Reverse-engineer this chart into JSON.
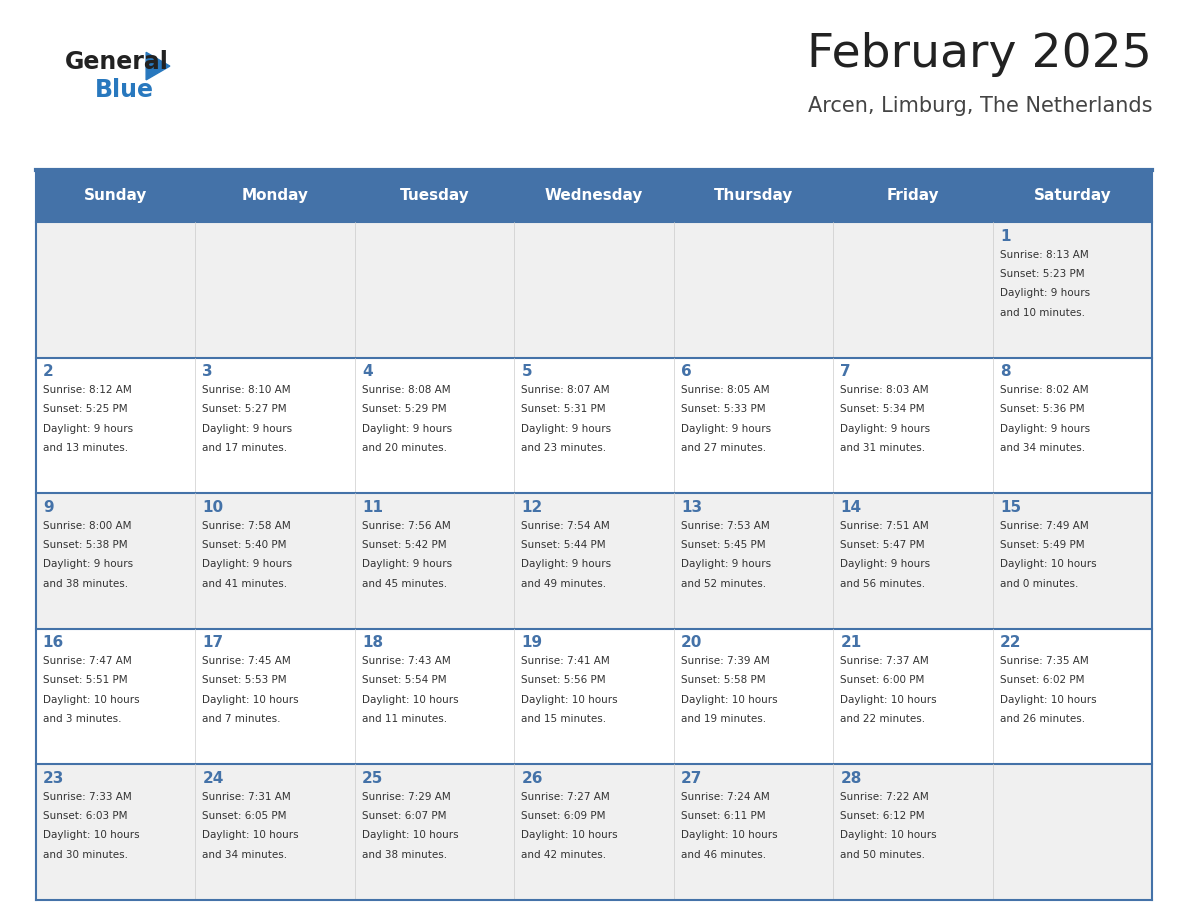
{
  "title": "February 2025",
  "subtitle": "Arcen, Limburg, The Netherlands",
  "days_of_week": [
    "Sunday",
    "Monday",
    "Tuesday",
    "Wednesday",
    "Thursday",
    "Friday",
    "Saturday"
  ],
  "header_bg": "#4472a8",
  "header_text": "#ffffff",
  "row_bg_even": "#f0f0f0",
  "row_bg_odd": "#ffffff",
  "separator_color": "#4472a8",
  "day_num_color": "#4472a8",
  "cell_text_color": "#333333",
  "title_color": "#222222",
  "subtitle_color": "#444444",
  "logo_general_color": "#222222",
  "logo_blue_color": "#2878be",
  "calendar_data": [
    {
      "day": 1,
      "col": 6,
      "row": 0,
      "sunrise": "8:13 AM",
      "sunset": "5:23 PM",
      "daylight": "9 hours and 10 minutes."
    },
    {
      "day": 2,
      "col": 0,
      "row": 1,
      "sunrise": "8:12 AM",
      "sunset": "5:25 PM",
      "daylight": "9 hours and 13 minutes."
    },
    {
      "day": 3,
      "col": 1,
      "row": 1,
      "sunrise": "8:10 AM",
      "sunset": "5:27 PM",
      "daylight": "9 hours and 17 minutes."
    },
    {
      "day": 4,
      "col": 2,
      "row": 1,
      "sunrise": "8:08 AM",
      "sunset": "5:29 PM",
      "daylight": "9 hours and 20 minutes."
    },
    {
      "day": 5,
      "col": 3,
      "row": 1,
      "sunrise": "8:07 AM",
      "sunset": "5:31 PM",
      "daylight": "9 hours and 23 minutes."
    },
    {
      "day": 6,
      "col": 4,
      "row": 1,
      "sunrise": "8:05 AM",
      "sunset": "5:33 PM",
      "daylight": "9 hours and 27 minutes."
    },
    {
      "day": 7,
      "col": 5,
      "row": 1,
      "sunrise": "8:03 AM",
      "sunset": "5:34 PM",
      "daylight": "9 hours and 31 minutes."
    },
    {
      "day": 8,
      "col": 6,
      "row": 1,
      "sunrise": "8:02 AM",
      "sunset": "5:36 PM",
      "daylight": "9 hours and 34 minutes."
    },
    {
      "day": 9,
      "col": 0,
      "row": 2,
      "sunrise": "8:00 AM",
      "sunset": "5:38 PM",
      "daylight": "9 hours and 38 minutes."
    },
    {
      "day": 10,
      "col": 1,
      "row": 2,
      "sunrise": "7:58 AM",
      "sunset": "5:40 PM",
      "daylight": "9 hours and 41 minutes."
    },
    {
      "day": 11,
      "col": 2,
      "row": 2,
      "sunrise": "7:56 AM",
      "sunset": "5:42 PM",
      "daylight": "9 hours and 45 minutes."
    },
    {
      "day": 12,
      "col": 3,
      "row": 2,
      "sunrise": "7:54 AM",
      "sunset": "5:44 PM",
      "daylight": "9 hours and 49 minutes."
    },
    {
      "day": 13,
      "col": 4,
      "row": 2,
      "sunrise": "7:53 AM",
      "sunset": "5:45 PM",
      "daylight": "9 hours and 52 minutes."
    },
    {
      "day": 14,
      "col": 5,
      "row": 2,
      "sunrise": "7:51 AM",
      "sunset": "5:47 PM",
      "daylight": "9 hours and 56 minutes."
    },
    {
      "day": 15,
      "col": 6,
      "row": 2,
      "sunrise": "7:49 AM",
      "sunset": "5:49 PM",
      "daylight": "10 hours and 0 minutes."
    },
    {
      "day": 16,
      "col": 0,
      "row": 3,
      "sunrise": "7:47 AM",
      "sunset": "5:51 PM",
      "daylight": "10 hours and 3 minutes."
    },
    {
      "day": 17,
      "col": 1,
      "row": 3,
      "sunrise": "7:45 AM",
      "sunset": "5:53 PM",
      "daylight": "10 hours and 7 minutes."
    },
    {
      "day": 18,
      "col": 2,
      "row": 3,
      "sunrise": "7:43 AM",
      "sunset": "5:54 PM",
      "daylight": "10 hours and 11 minutes."
    },
    {
      "day": 19,
      "col": 3,
      "row": 3,
      "sunrise": "7:41 AM",
      "sunset": "5:56 PM",
      "daylight": "10 hours and 15 minutes."
    },
    {
      "day": 20,
      "col": 4,
      "row": 3,
      "sunrise": "7:39 AM",
      "sunset": "5:58 PM",
      "daylight": "10 hours and 19 minutes."
    },
    {
      "day": 21,
      "col": 5,
      "row": 3,
      "sunrise": "7:37 AM",
      "sunset": "6:00 PM",
      "daylight": "10 hours and 22 minutes."
    },
    {
      "day": 22,
      "col": 6,
      "row": 3,
      "sunrise": "7:35 AM",
      "sunset": "6:02 PM",
      "daylight": "10 hours and 26 minutes."
    },
    {
      "day": 23,
      "col": 0,
      "row": 4,
      "sunrise": "7:33 AM",
      "sunset": "6:03 PM",
      "daylight": "10 hours and 30 minutes."
    },
    {
      "day": 24,
      "col": 1,
      "row": 4,
      "sunrise": "7:31 AM",
      "sunset": "6:05 PM",
      "daylight": "10 hours and 34 minutes."
    },
    {
      "day": 25,
      "col": 2,
      "row": 4,
      "sunrise": "7:29 AM",
      "sunset": "6:07 PM",
      "daylight": "10 hours and 38 minutes."
    },
    {
      "day": 26,
      "col": 3,
      "row": 4,
      "sunrise": "7:27 AM",
      "sunset": "6:09 PM",
      "daylight": "10 hours and 42 minutes."
    },
    {
      "day": 27,
      "col": 4,
      "row": 4,
      "sunrise": "7:24 AM",
      "sunset": "6:11 PM",
      "daylight": "10 hours and 46 minutes."
    },
    {
      "day": 28,
      "col": 5,
      "row": 4,
      "sunrise": "7:22 AM",
      "sunset": "6:12 PM",
      "daylight": "10 hours and 50 minutes."
    }
  ]
}
